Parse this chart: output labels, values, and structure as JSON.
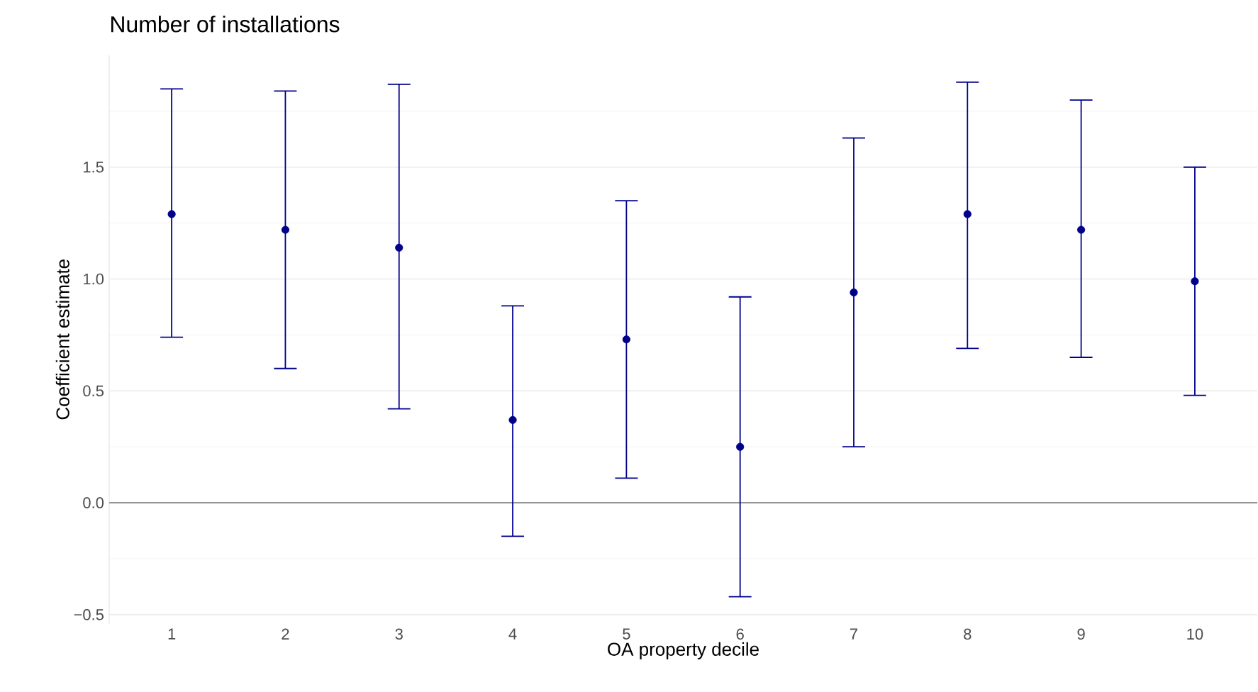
{
  "chart_data": {
    "type": "scatter",
    "title": "Number of installations",
    "xlabel": "OA property decile",
    "ylabel": "Coefficient estimate",
    "categories": [
      "1",
      "2",
      "3",
      "4",
      "5",
      "6",
      "7",
      "8",
      "9",
      "10"
    ],
    "values": [
      1.29,
      1.22,
      1.14,
      0.37,
      0.73,
      0.25,
      0.94,
      1.29,
      1.22,
      0.99
    ],
    "errors": [
      [
        0.74,
        1.85
      ],
      [
        0.6,
        1.84
      ],
      [
        0.42,
        1.87
      ],
      [
        -0.15,
        0.88
      ],
      [
        0.11,
        1.35
      ],
      [
        -0.42,
        0.92
      ],
      [
        0.25,
        1.63
      ],
      [
        0.69,
        1.88
      ],
      [
        0.65,
        1.8
      ],
      [
        0.48,
        1.5
      ]
    ],
    "color": "#00008b",
    "marker": "circle",
    "grid": "y",
    "ylim": [
      -0.54,
      2.0
    ],
    "yticks": [
      {
        "value": -0.5,
        "label": "−0.5"
      },
      {
        "value": 0,
        "label": "0.0"
      },
      {
        "value": 0.5,
        "label": "0.5"
      },
      {
        "value": 1,
        "label": "1.0"
      },
      {
        "value": 1.5,
        "label": "1.5"
      }
    ],
    "ref_lines": [
      {
        "axis": "y",
        "value": 0,
        "color": "#7f7f7f"
      }
    ]
  }
}
